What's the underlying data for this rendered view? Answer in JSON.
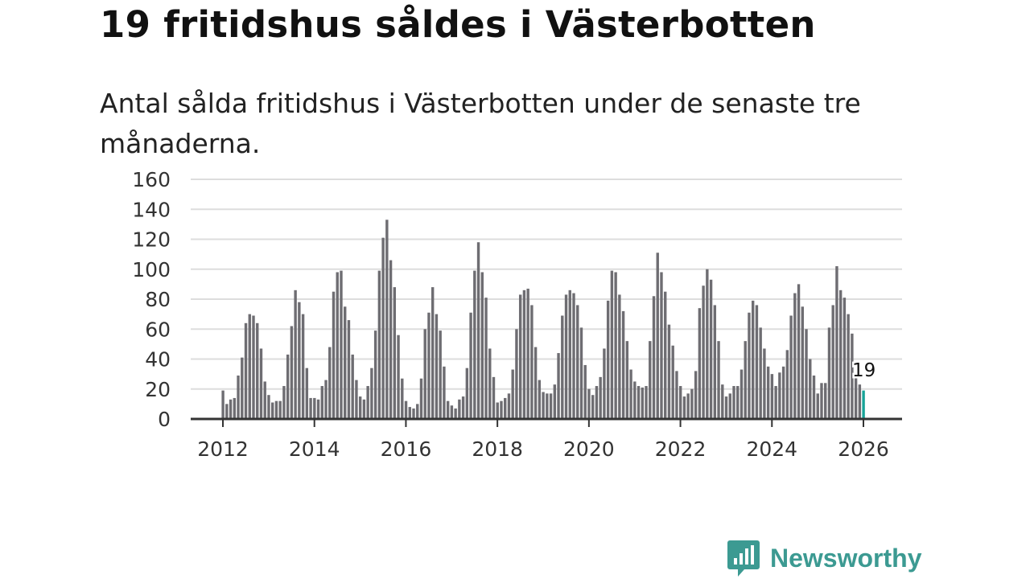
{
  "title": "19 fritidshus såldes i Västerbotten",
  "subtitle": "Antal sålda fritidshus i Västerbotten under de senaste tre månaderna.",
  "logo_text": "Newsworthy",
  "colors": {
    "bar": "#6e6d72",
    "highlight": "#17a398",
    "grid": "#dddddd",
    "axis": "#333333",
    "brand": "#3c9a92"
  },
  "chart_data": {
    "type": "bar",
    "title": "19 fritidshus såldes i Västerbotten",
    "xlabel": "",
    "ylabel": "",
    "ylim": [
      0,
      160
    ],
    "yticks": [
      0,
      20,
      40,
      60,
      80,
      100,
      120,
      140,
      160
    ],
    "xticks": [
      "2012",
      "2014",
      "2016",
      "2018",
      "2020",
      "2022",
      "2024",
      "2026"
    ],
    "start": "2012-01",
    "frequency": "monthly",
    "grid": true,
    "annotation": {
      "label": "19",
      "month_index": 168
    },
    "values": [
      19,
      10,
      13,
      14,
      29,
      41,
      64,
      70,
      69,
      64,
      47,
      25,
      16,
      11,
      12,
      12,
      22,
      43,
      62,
      86,
      78,
      70,
      34,
      14,
      14,
      13,
      22,
      26,
      48,
      85,
      98,
      99,
      75,
      66,
      43,
      26,
      15,
      13,
      22,
      34,
      59,
      99,
      121,
      133,
      106,
      88,
      56,
      27,
      12,
      8,
      7,
      10,
      27,
      60,
      71,
      88,
      70,
      59,
      35,
      12,
      9,
      7,
      13,
      15,
      34,
      71,
      99,
      118,
      98,
      81,
      47,
      28,
      11,
      12,
      14,
      17,
      33,
      60,
      83,
      86,
      87,
      76,
      48,
      26,
      18,
      17,
      17,
      23,
      44,
      69,
      83,
      86,
      84,
      76,
      61,
      36,
      20,
      16,
      22,
      28,
      47,
      79,
      99,
      98,
      83,
      72,
      52,
      33,
      25,
      22,
      21,
      22,
      52,
      82,
      111,
      98,
      85,
      63,
      49,
      32,
      22,
      15,
      17,
      20,
      32,
      74,
      89,
      100,
      93,
      76,
      52,
      23,
      15,
      17,
      22,
      22,
      33,
      52,
      71,
      79,
      76,
      61,
      47,
      35,
      30,
      22,
      31,
      35,
      46,
      69,
      84,
      90,
      75,
      60,
      40,
      29,
      17,
      24,
      24,
      61,
      76,
      102,
      86,
      81,
      70,
      57,
      30,
      23,
      19
    ]
  }
}
